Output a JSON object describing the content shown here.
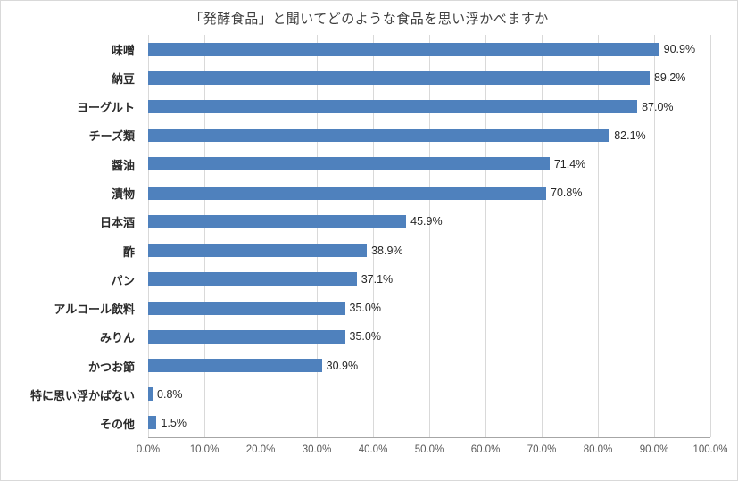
{
  "title": "「発酵食品」と聞いてどのような食品を思い浮かべますか",
  "colors": {
    "bar": "#4F81BD",
    "gridline": "#D9D9D9",
    "axis_line": "#A6A6A6"
  },
  "chart_data": {
    "type": "bar",
    "orientation": "horizontal",
    "title": "「発酵食品」と聞いてどのような食品を思い浮かべますか",
    "categories": [
      "味噌",
      "納豆",
      "ヨーグルト",
      "チーズ類",
      "醤油",
      "漬物",
      "日本酒",
      "酢",
      "パン",
      "アルコール飲料",
      "みりん",
      "かつお節",
      "特に思い浮かばない",
      "その他"
    ],
    "values": [
      90.9,
      89.2,
      87.0,
      82.1,
      71.4,
      70.8,
      45.9,
      38.9,
      37.1,
      35.0,
      35.0,
      30.9,
      0.8,
      1.5
    ],
    "value_labels": [
      "90.9%",
      "89.2%",
      "87.0%",
      "82.1%",
      "71.4%",
      "70.8%",
      "45.9%",
      "38.9%",
      "37.1%",
      "35.0%",
      "35.0%",
      "30.9%",
      "0.8%",
      "1.5%"
    ],
    "xlabel": "",
    "ylabel": "",
    "xlim": [
      0,
      100
    ],
    "x_tick_step": 10,
    "x_tick_labels": [
      "0.0%",
      "10.0%",
      "20.0%",
      "30.0%",
      "40.0%",
      "50.0%",
      "60.0%",
      "70.0%",
      "80.0%",
      "90.0%",
      "100.0%"
    ],
    "grid": true,
    "legend": false
  }
}
